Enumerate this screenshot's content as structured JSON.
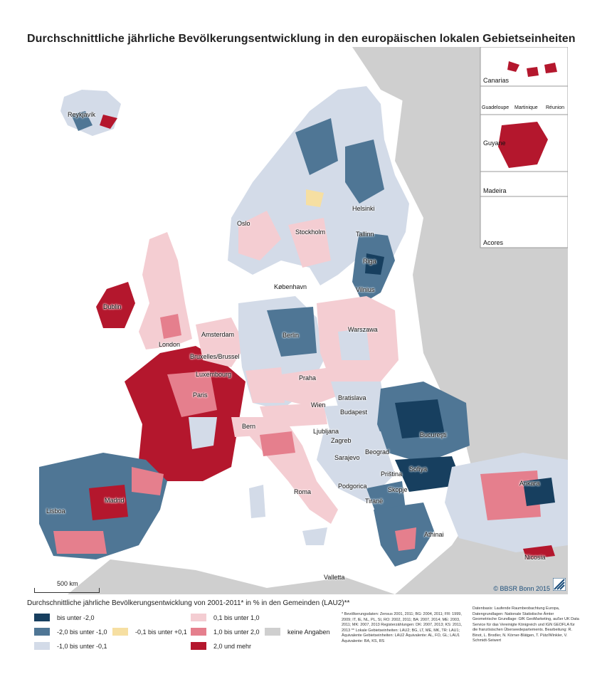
{
  "title": "Durchschnittliche jährliche Bevölkerungsentwicklung in den europäischen lokalen Gebietseinheiten",
  "colors": {
    "c1": "#173f5f",
    "c2": "#4f7695",
    "c3": "#d3dbe8",
    "c4": "#f6dfa2",
    "c5": "#f4cdd2",
    "c6": "#e57f8d",
    "c7": "#b4172d",
    "nodata": "#cfcfcf",
    "sea": "#ffffff",
    "nonEU": "#cfcfcf"
  },
  "cities": {
    "reykjavik": "Reykjavík",
    "oslo": "Oslo",
    "stockholm": "Stockholm",
    "helsinki": "Helsinki",
    "tallinn": "Tallinn",
    "riga": "Riga",
    "vilnius": "Vilnius",
    "kobenhavn": "København",
    "dublin": "Dublin",
    "london": "London",
    "amsterdam": "Amsterdam",
    "bruxelles": "Bruxelles/Brussel",
    "luxembourg": "Luxembourg",
    "paris": "Paris",
    "berlin": "Berlin",
    "warszawa": "Warszawa",
    "praha": "Praha",
    "bratislava": "Bratislava",
    "wien": "Wien",
    "budapest": "Budapest",
    "bern": "Bern",
    "ljubljana": "Ljubljana",
    "zagreb": "Zagreb",
    "bucuresti": "Bucureşti",
    "beograd": "Beograd",
    "sarajevo": "Sarajevo",
    "sofiya": "Sofiya",
    "pristina": "Priština",
    "podgorica": "Podgorica",
    "skopje": "Skopje",
    "tirana": "Tiranë",
    "ankara": "Ankara",
    "roma": "Roma",
    "madrid": "Madrid",
    "lisboa": "Lisboa",
    "athinai": "Athinai",
    "valletta": "Valletta",
    "nicosia": "Nicosia"
  },
  "insets": {
    "canarias": "Canarias",
    "guadeloupe": "Guadeloupe",
    "martinique": "Martinique",
    "reunion": "Réunion",
    "guyane": "Guyane",
    "madeira": "Madeira",
    "acores": "Acores"
  },
  "scale": "500 km",
  "credit": "© BBSR Bonn 2015",
  "legend": {
    "title": "Durchschnittliche jährliche Bevölkerungsentwicklung von 2001-2011* in % in den Gemeinden (LAU2)**",
    "items": [
      {
        "label": "bis unter -2,0",
        "color": "#173f5f"
      },
      {
        "label": "-2,0 bis unter -1,0",
        "color": "#4f7695"
      },
      {
        "label": "-1,0 bis unter -0,1",
        "color": "#d3dbe8"
      },
      {
        "label": "-0,1 bis unter +0,1",
        "color": "#f6dfa2"
      },
      {
        "label": "0,1 bis unter 1,0",
        "color": "#f4cdd2"
      },
      {
        "label": "1,0 bis unter 2,0",
        "color": "#e57f8d"
      },
      {
        "label": "2,0 und mehr",
        "color": "#b4172d"
      },
      {
        "label": "keine Angaben",
        "color": "#cfcfcf"
      }
    ]
  },
  "notes": "* Bevölkerungsdaten: Zensus 2001, 2011; BG: 2004, 2011; FR: 1999, 2009; IT, IE, NL, PL, SI, RO: 2002, 2011; BA: 2007, 2014; ME: 2003, 2011; MK: 2007, 2013 Registerzählungen: DK: 2007, 2013; KS: 2011, 2013 ** Lokale Gebietseinheiten: LAU2; BG, LT, ME, MK, TR: LAU1; Äquivalente Gebietseinheiten: LAU2 Äquivalente: AL, FO, GL; LAU1 Äquivalente: BA, KS, RS",
  "source": "Datenbasis: Laufende Raumbeobachtung Europa, Datengrundlagen: Nationale Statistische Ämter Geometrische Grundlage: GfK GeoMarketing, außer UK Data Service für das Vereinigte Königreich und IGN GEOFLA für die französischen Überseedepartements. Bearbeitung: R. Binot, L. Brodler, N. Körner-Blätgen, T. Pütz/Winkler, V. Schmidt-Seiwert"
}
